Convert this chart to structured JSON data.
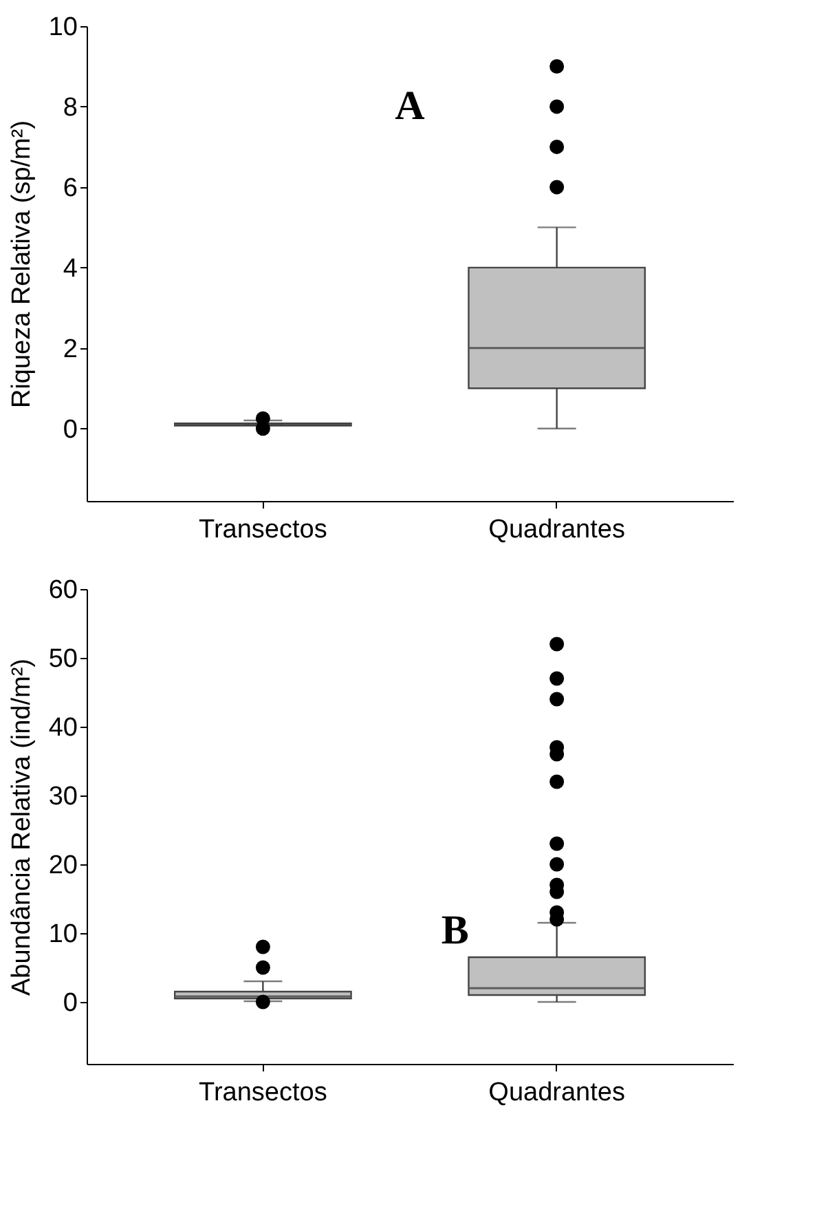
{
  "chart_data": [
    {
      "type": "box",
      "categories": [
        "Transectos",
        "Quadrantes"
      ],
      "ylabel": "Riqueza Relativa (sp/m²)",
      "ylim": [
        -1.8,
        10
      ],
      "yticks": [
        0,
        2,
        4,
        6,
        8,
        10
      ],
      "grid": false,
      "annotations": [
        "A"
      ],
      "series": [
        {
          "color": "#c0c0c0",
          "boxes": [
            {
              "low": 0.1,
              "q1": 0.07,
              "median": 0.1,
              "q3": 0.13,
              "high": 0.2,
              "outliers": [
                0,
                0.25
              ]
            },
            {
              "low": 0,
              "q1": 1,
              "median": 2,
              "q3": 4,
              "high": 5,
              "outliers": [
                6,
                7,
                8,
                9
              ]
            }
          ]
        }
      ]
    },
    {
      "type": "box",
      "categories": [
        "Transectos",
        "Quadrantes"
      ],
      "ylabel": "Abundância Relativa (ind/m²)",
      "ylim": [
        -9,
        60
      ],
      "yticks": [
        0,
        10,
        20,
        30,
        40,
        50,
        60
      ],
      "grid": false,
      "annotations": [
        "B"
      ],
      "series": [
        {
          "color": "#c0c0c0",
          "boxes": [
            {
              "low": 0.1,
              "q1": 0.5,
              "median": 0.8,
              "q3": 1.5,
              "high": 3,
              "outliers": [
                0,
                5,
                8
              ]
            },
            {
              "low": 0,
              "q1": 1,
              "median": 2,
              "q3": 6.5,
              "high": 11.5,
              "outliers": [
                12,
                13,
                16,
                17,
                20,
                23,
                32,
                36,
                37,
                44,
                47,
                52
              ]
            }
          ]
        }
      ]
    }
  ]
}
